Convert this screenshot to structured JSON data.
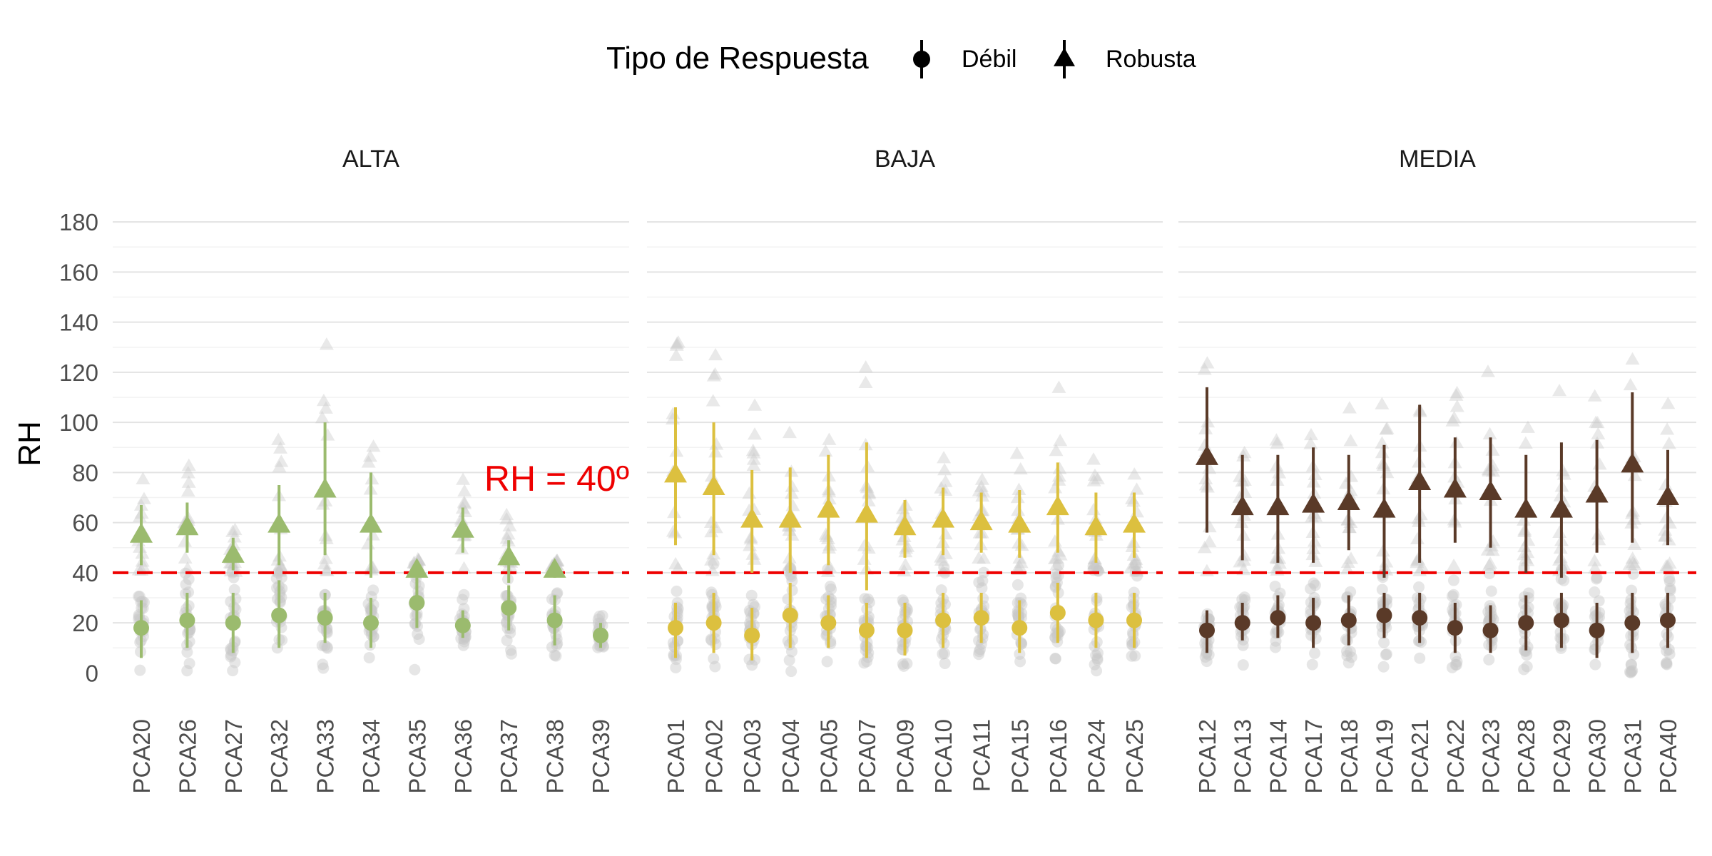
{
  "chart_data": {
    "type": "scatter",
    "ylabel": "RH",
    "ylim": [
      -7,
      186
    ],
    "yticks": [
      0,
      20,
      40,
      60,
      80,
      100,
      120,
      140,
      160,
      180
    ],
    "grid": true,
    "legend": {
      "position": "top",
      "title": "Tipo de Respuesta",
      "entries": [
        {
          "label": "Débil",
          "shape": "circle"
        },
        {
          "label": "Robusta",
          "shape": "triangle"
        }
      ]
    },
    "reference_line": {
      "y": 40,
      "label": "RH = 40º",
      "color": "#ee0000",
      "style": "dashed"
    },
    "raw_point_color": "#c8c8c8",
    "panels": [
      {
        "name": "ALTA",
        "color": "#9bbb6e",
        "categories": [
          "PCA20",
          "PCA26",
          "PCA27",
          "PCA32",
          "PCA33",
          "PCA34",
          "PCA35",
          "PCA36",
          "PCA37",
          "PCA38",
          "PCA39"
        ],
        "debil": [
          {
            "mean": 18,
            "low": 6,
            "high": 29
          },
          {
            "mean": 21,
            "low": 10,
            "high": 32
          },
          {
            "mean": 20,
            "low": 8,
            "high": 32
          },
          {
            "mean": 23,
            "low": 10,
            "high": 37
          },
          {
            "mean": 22,
            "low": 12,
            "high": 32
          },
          {
            "mean": 20,
            "low": 10,
            "high": 30
          },
          {
            "mean": 28,
            "low": 18,
            "high": 38
          },
          {
            "mean": 19,
            "low": 14,
            "high": 25
          },
          {
            "mean": 26,
            "low": 17,
            "high": 35
          },
          {
            "mean": 21,
            "low": 11,
            "high": 31
          },
          {
            "mean": 15,
            "low": 10,
            "high": 20
          }
        ],
        "robusta": [
          {
            "mean": 55,
            "low": 43,
            "high": 67
          },
          {
            "mean": 58,
            "low": 48,
            "high": 68
          },
          {
            "mean": 47,
            "low": 41,
            "high": 54
          },
          {
            "mean": 59,
            "low": 43,
            "high": 75
          },
          {
            "mean": 73,
            "low": 47,
            "high": 100
          },
          {
            "mean": 59,
            "low": 38,
            "high": 80
          },
          {
            "mean": 41,
            "low": 38,
            "high": 44
          },
          {
            "mean": 57,
            "low": 48,
            "high": 66
          },
          {
            "mean": 46,
            "low": 36,
            "high": 53
          },
          {
            "mean": 41,
            "low": 38,
            "high": 44
          },
          null
        ]
      },
      {
        "name": "BAJA",
        "color": "#dcc03f",
        "categories": [
          "PCA01",
          "PCA02",
          "PCA03",
          "PCA04",
          "PCA05",
          "PCA07",
          "PCA09",
          "PCA10",
          "PCA11",
          "PCA15",
          "PCA16",
          "PCA24",
          "PCA25"
        ],
        "debil": [
          {
            "mean": 18,
            "low": 6,
            "high": 28
          },
          {
            "mean": 20,
            "low": 8,
            "high": 32
          },
          {
            "mean": 15,
            "low": 5,
            "high": 26
          },
          {
            "mean": 23,
            "low": 10,
            "high": 36
          },
          {
            "mean": 20,
            "low": 10,
            "high": 31
          },
          {
            "mean": 17,
            "low": 6,
            "high": 28
          },
          {
            "mean": 17,
            "low": 7,
            "high": 28
          },
          {
            "mean": 21,
            "low": 10,
            "high": 32
          },
          {
            "mean": 22,
            "low": 12,
            "high": 32
          },
          {
            "mean": 18,
            "low": 8,
            "high": 29
          },
          {
            "mean": 24,
            "low": 12,
            "high": 36
          },
          {
            "mean": 21,
            "low": 10,
            "high": 32
          },
          {
            "mean": 21,
            "low": 10,
            "high": 32
          }
        ],
        "robusta": [
          {
            "mean": 79,
            "low": 51,
            "high": 106
          },
          {
            "mean": 74,
            "low": 47,
            "high": 100
          },
          {
            "mean": 61,
            "low": 40,
            "high": 81
          },
          {
            "mean": 61,
            "low": 40,
            "high": 82
          },
          {
            "mean": 65,
            "low": 43,
            "high": 87
          },
          {
            "mean": 63,
            "low": 33,
            "high": 92
          },
          {
            "mean": 58,
            "low": 46,
            "high": 69
          },
          {
            "mean": 61,
            "low": 47,
            "high": 74
          },
          {
            "mean": 60,
            "low": 48,
            "high": 72
          },
          {
            "mean": 59,
            "low": 46,
            "high": 73
          },
          {
            "mean": 66,
            "low": 48,
            "high": 84
          },
          {
            "mean": 58,
            "low": 44,
            "high": 72
          },
          {
            "mean": 59,
            "low": 46,
            "high": 72
          }
        ]
      },
      {
        "name": "MEDIA",
        "color": "#5a3a28",
        "categories": [
          "PCA12",
          "PCA13",
          "PCA14",
          "PCA17",
          "PCA18",
          "PCA19",
          "PCA21",
          "PCA22",
          "PCA23",
          "PCA28",
          "PCA29",
          "PCA30",
          "PCA31",
          "PCA40"
        ],
        "debil": [
          {
            "mean": 17,
            "low": 8,
            "high": 25
          },
          {
            "mean": 20,
            "low": 13,
            "high": 28
          },
          {
            "mean": 22,
            "low": 14,
            "high": 31
          },
          {
            "mean": 20,
            "low": 10,
            "high": 30
          },
          {
            "mean": 21,
            "low": 11,
            "high": 31
          },
          {
            "mean": 23,
            "low": 14,
            "high": 32
          },
          {
            "mean": 22,
            "low": 12,
            "high": 32
          },
          {
            "mean": 18,
            "low": 8,
            "high": 28
          },
          {
            "mean": 17,
            "low": 8,
            "high": 27
          },
          {
            "mean": 20,
            "low": 9,
            "high": 31
          },
          {
            "mean": 21,
            "low": 10,
            "high": 32
          },
          {
            "mean": 17,
            "low": 6,
            "high": 28
          },
          {
            "mean": 20,
            "low": 8,
            "high": 32
          },
          {
            "mean": 21,
            "low": 10,
            "high": 32
          }
        ],
        "robusta": [
          {
            "mean": 86,
            "low": 56,
            "high": 114
          },
          {
            "mean": 66,
            "low": 45,
            "high": 87
          },
          {
            "mean": 66,
            "low": 44,
            "high": 87
          },
          {
            "mean": 67,
            "low": 44,
            "high": 90
          },
          {
            "mean": 68,
            "low": 49,
            "high": 87
          },
          {
            "mean": 65,
            "low": 38,
            "high": 91
          },
          {
            "mean": 76,
            "low": 44,
            "high": 107
          },
          {
            "mean": 73,
            "low": 52,
            "high": 94
          },
          {
            "mean": 72,
            "low": 50,
            "high": 94
          },
          {
            "mean": 65,
            "low": 40,
            "high": 87
          },
          {
            "mean": 65,
            "low": 38,
            "high": 92
          },
          {
            "mean": 71,
            "low": 48,
            "high": 93
          },
          {
            "mean": 83,
            "low": 52,
            "high": 112
          },
          {
            "mean": 70,
            "low": 51,
            "high": 89
          }
        ]
      }
    ]
  }
}
